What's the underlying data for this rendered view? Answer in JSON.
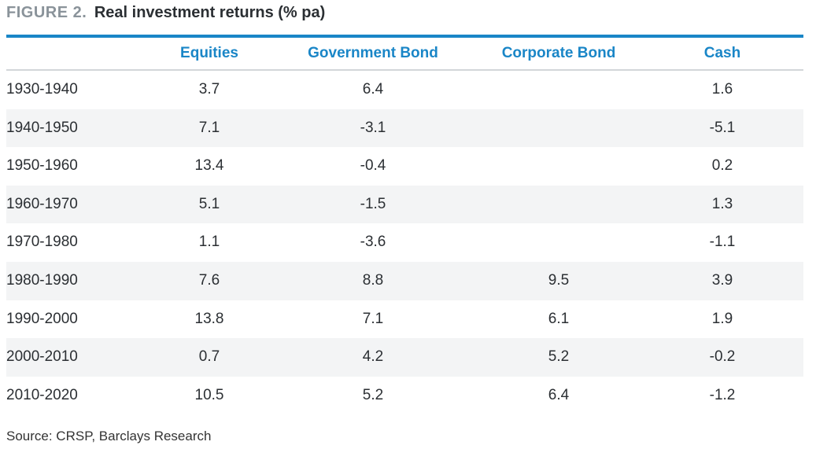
{
  "figure": {
    "label": "FIGURE 2.",
    "title": "Real investment returns (% pa)"
  },
  "table": {
    "columns": [
      "Equities",
      "Government Bond",
      "Corporate Bond",
      "Cash"
    ],
    "rows": [
      {
        "period": "1930-1940",
        "equities": "3.7",
        "government_bond": "6.4",
        "corporate_bond": "",
        "cash": "1.6"
      },
      {
        "period": "1940-1950",
        "equities": "7.1",
        "government_bond": "-3.1",
        "corporate_bond": "",
        "cash": "-5.1"
      },
      {
        "period": "1950-1960",
        "equities": "13.4",
        "government_bond": "-0.4",
        "corporate_bond": "",
        "cash": "0.2"
      },
      {
        "period": "1960-1970",
        "equities": "5.1",
        "government_bond": "-1.5",
        "corporate_bond": "",
        "cash": "1.3"
      },
      {
        "period": "1970-1980",
        "equities": "1.1",
        "government_bond": "-3.6",
        "corporate_bond": "",
        "cash": "-1.1"
      },
      {
        "period": "1980-1990",
        "equities": "7.6",
        "government_bond": "8.8",
        "corporate_bond": "9.5",
        "cash": "3.9"
      },
      {
        "period": "1990-2000",
        "equities": "13.8",
        "government_bond": "7.1",
        "corporate_bond": "6.1",
        "cash": "1.9"
      },
      {
        "period": "2000-2010",
        "equities": "0.7",
        "government_bond": "4.2",
        "corporate_bond": "5.2",
        "cash": "-0.2"
      },
      {
        "period": "2010-2020",
        "equities": "10.5",
        "government_bond": "5.2",
        "corporate_bond": "6.4",
        "cash": "-1.2"
      }
    ]
  },
  "source": "Source: CRSP, Barclays Research",
  "colors": {
    "accent": "#1a86c7",
    "figure_label": "#8a939a",
    "row_alt_bg": "#f3f4f5"
  }
}
